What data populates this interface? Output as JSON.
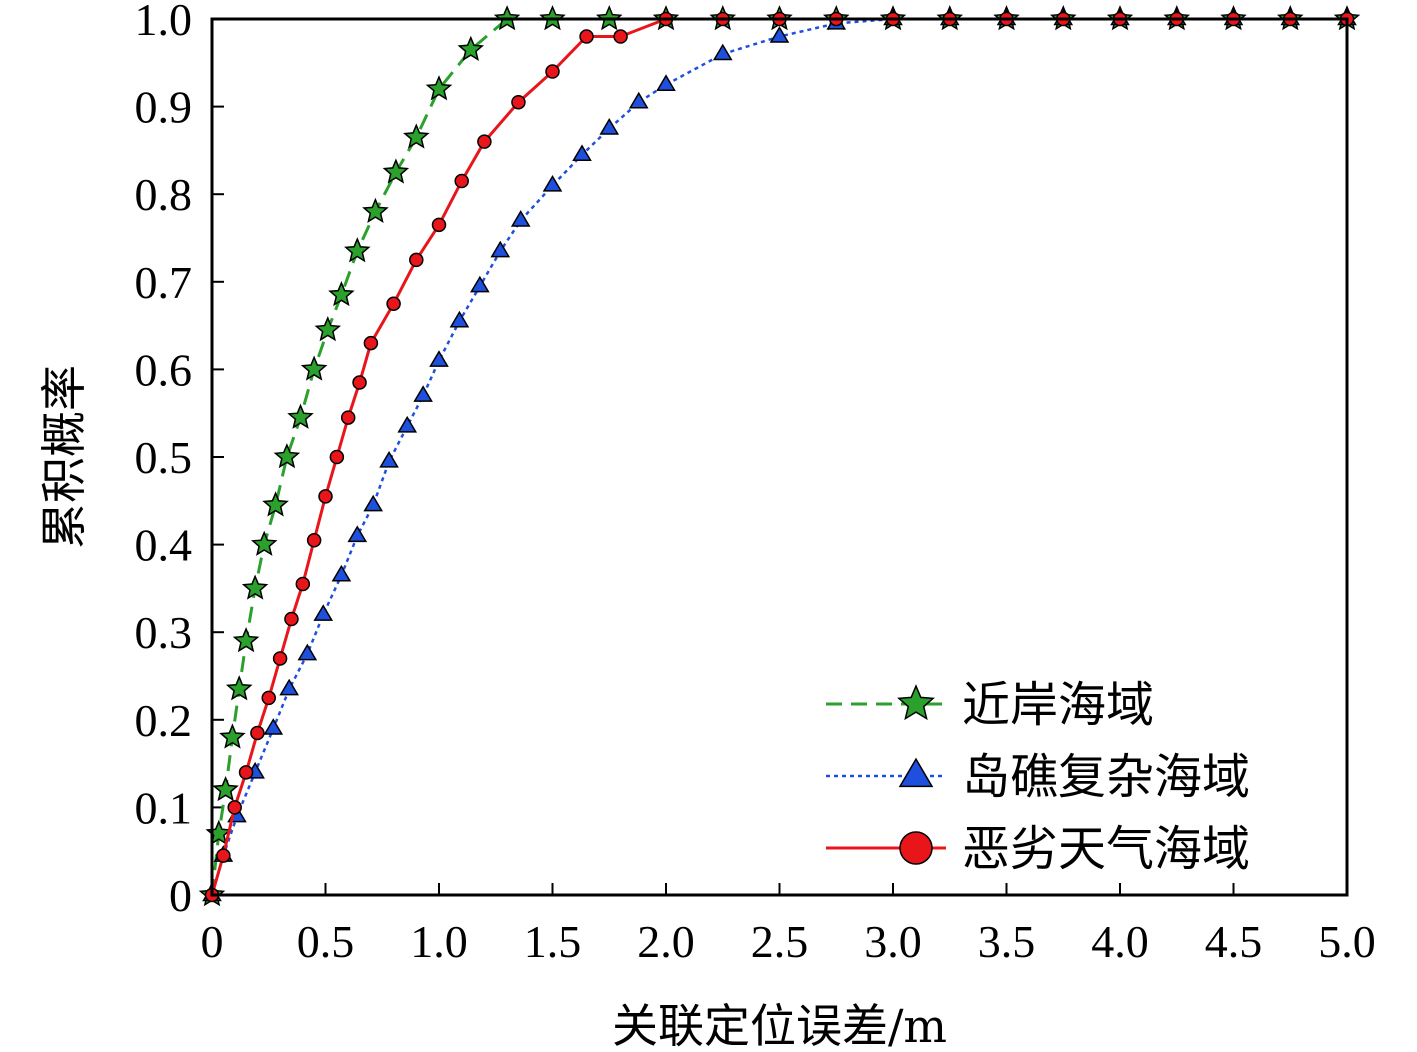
{
  "chart_data": {
    "type": "line",
    "title": "",
    "xlabel": "关联定位误差/m",
    "ylabel": "累积概率",
    "xlim": [
      0,
      5.0
    ],
    "ylim": [
      0,
      1.0
    ],
    "x_ticks": [
      0,
      0.5,
      1.0,
      1.5,
      2.0,
      2.5,
      3.0,
      3.5,
      4.0,
      4.5,
      5.0
    ],
    "x_tick_labels": [
      "0",
      "0.5",
      "1.0",
      "1.5",
      "2.0",
      "2.5",
      "3.0",
      "3.5",
      "4.0",
      "4.5",
      "5.0"
    ],
    "y_ticks": [
      0,
      0.1,
      0.2,
      0.3,
      0.4,
      0.5,
      0.6,
      0.7,
      0.8,
      0.9,
      1.0
    ],
    "y_tick_labels": [
      "0",
      "0.1",
      "0.2",
      "0.3",
      "0.4",
      "0.5",
      "0.6",
      "0.7",
      "0.8",
      "0.9",
      "1.0"
    ],
    "grid": false,
    "legend_position": "bottom-right",
    "series": [
      {
        "name": "近岸海域",
        "color": "#2ca02c",
        "line_style": "dashed",
        "marker": "star",
        "x": [
          0,
          0.03,
          0.06,
          0.09,
          0.12,
          0.15,
          0.19,
          0.23,
          0.28,
          0.33,
          0.39,
          0.45,
          0.51,
          0.57,
          0.64,
          0.72,
          0.81,
          0.9,
          1.0,
          1.14,
          1.3,
          1.5,
          1.75,
          2.0,
          2.25,
          2.5,
          2.75,
          3.0,
          3.25,
          3.5,
          3.75,
          4.0,
          4.25,
          4.5,
          4.75,
          5.0
        ],
        "y": [
          0,
          0.07,
          0.12,
          0.18,
          0.235,
          0.29,
          0.35,
          0.4,
          0.445,
          0.5,
          0.545,
          0.6,
          0.645,
          0.685,
          0.735,
          0.78,
          0.825,
          0.865,
          0.92,
          0.965,
          1.0,
          1.0,
          1.0,
          1.0,
          1.0,
          1.0,
          1.0,
          1.0,
          1.0,
          1.0,
          1.0,
          1.0,
          1.0,
          1.0,
          1.0,
          1.0
        ]
      },
      {
        "name": "岛礁复杂海域",
        "color": "#1f4fdd",
        "line_style": "dotted",
        "marker": "triangle",
        "x": [
          0,
          0.05,
          0.11,
          0.19,
          0.27,
          0.34,
          0.42,
          0.49,
          0.57,
          0.64,
          0.71,
          0.78,
          0.86,
          0.93,
          1.0,
          1.09,
          1.18,
          1.27,
          1.36,
          1.5,
          1.63,
          1.75,
          1.88,
          2.0,
          2.25,
          2.5,
          2.75,
          3.0,
          3.25,
          3.5,
          3.75,
          4.0,
          4.25,
          4.5,
          4.75,
          5.0
        ],
        "y": [
          0,
          0.045,
          0.09,
          0.14,
          0.19,
          0.235,
          0.275,
          0.32,
          0.365,
          0.41,
          0.445,
          0.495,
          0.535,
          0.57,
          0.61,
          0.655,
          0.695,
          0.735,
          0.77,
          0.81,
          0.845,
          0.875,
          0.905,
          0.925,
          0.96,
          0.98,
          0.995,
          1.0,
          1.0,
          1.0,
          1.0,
          1.0,
          1.0,
          1.0,
          1.0,
          1.0
        ]
      },
      {
        "name": "恶劣天气海域",
        "color": "#e8161b",
        "line_style": "solid",
        "marker": "circle",
        "x": [
          0,
          0.05,
          0.1,
          0.15,
          0.2,
          0.25,
          0.3,
          0.35,
          0.4,
          0.45,
          0.5,
          0.55,
          0.6,
          0.65,
          0.7,
          0.8,
          0.9,
          1.0,
          1.1,
          1.2,
          1.35,
          1.5,
          1.65,
          1.8,
          2.0,
          2.25,
          2.5,
          2.75,
          3.0,
          3.25,
          3.5,
          3.75,
          4.0,
          4.25,
          4.5,
          4.75,
          5.0
        ],
        "y": [
          0,
          0.045,
          0.1,
          0.14,
          0.185,
          0.225,
          0.27,
          0.315,
          0.355,
          0.405,
          0.455,
          0.5,
          0.545,
          0.585,
          0.63,
          0.675,
          0.725,
          0.765,
          0.815,
          0.86,
          0.905,
          0.94,
          0.98,
          0.98,
          1.0,
          1.0,
          1.0,
          1.0,
          1.0,
          1.0,
          1.0,
          1.0,
          1.0,
          1.0,
          1.0,
          1.0,
          1.0
        ]
      }
    ]
  }
}
